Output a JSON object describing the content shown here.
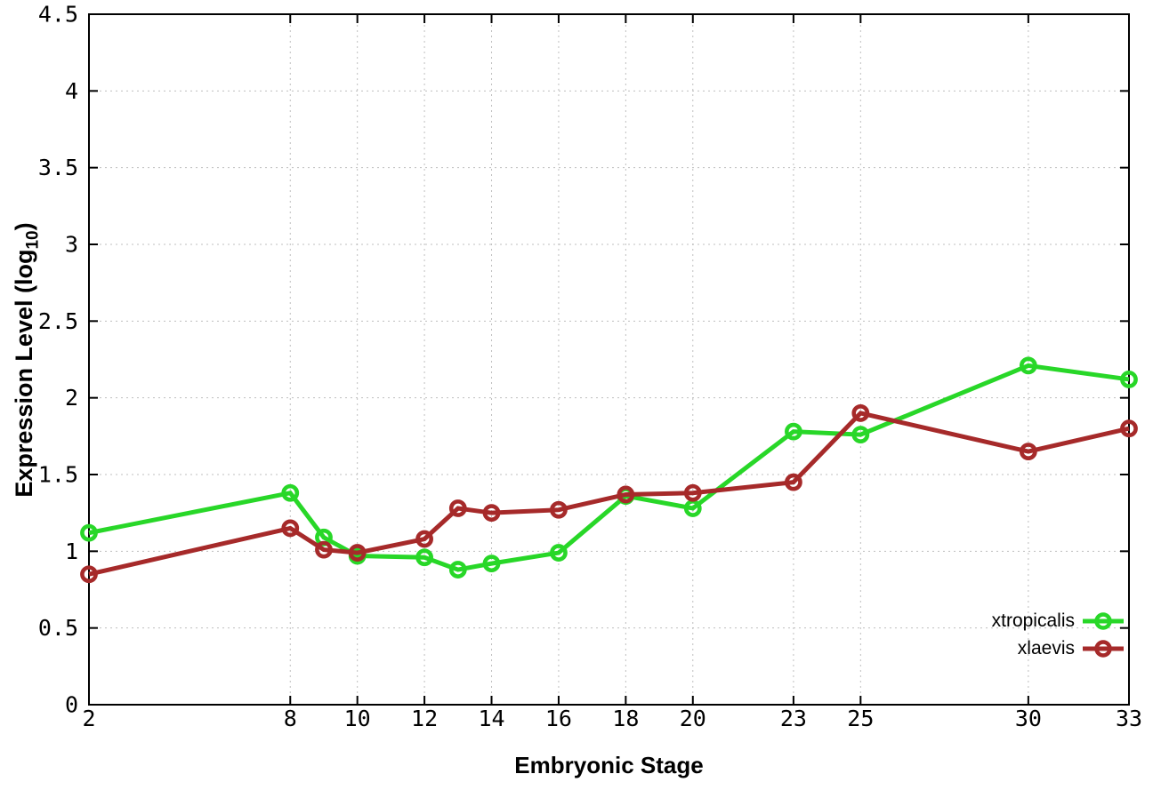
{
  "chart_data": {
    "type": "line",
    "title": "",
    "xlabel": "Embryonic Stage",
    "ylabel": {
      "main": "Expression Level (log",
      "sub": "10",
      "end": ")"
    },
    "x": [
      2,
      8,
      9,
      10,
      12,
      13,
      14,
      16,
      18,
      20,
      23,
      25,
      30,
      33
    ],
    "x_tick_labels": [
      "2",
      "8",
      "10",
      "12",
      "14",
      "16",
      "18",
      "20",
      "23",
      "25",
      "30",
      "33"
    ],
    "x_ticks": [
      2,
      8,
      10,
      12,
      14,
      16,
      18,
      20,
      23,
      25,
      30,
      33
    ],
    "y_tick_labels": [
      "0",
      "0.5",
      "1",
      "1.5",
      "2",
      "2.5",
      "3",
      "3.5",
      "4",
      "4.5"
    ],
    "y_ticks": [
      0,
      0.5,
      1,
      1.5,
      2,
      2.5,
      3,
      3.5,
      4,
      4.5
    ],
    "xlim": [
      2,
      33
    ],
    "ylim": [
      0,
      4.5
    ],
    "grid": true,
    "legend_position": "bottom-right",
    "marker": "open-circle",
    "grid_color": "#bfbfbf",
    "axis_color": "#000000",
    "series": [
      {
        "name": "xtropicalis",
        "color": "#28D728",
        "values": [
          1.12,
          1.38,
          1.09,
          0.97,
          0.96,
          0.88,
          0.92,
          0.99,
          1.36,
          1.28,
          1.78,
          1.76,
          2.21,
          2.12
        ]
      },
      {
        "name": "xlaevis",
        "color": "#A62A2A",
        "values": [
          0.85,
          1.15,
          1.01,
          0.99,
          1.08,
          1.28,
          1.25,
          1.27,
          1.37,
          1.38,
          1.45,
          1.9,
          1.65,
          1.8
        ]
      }
    ]
  }
}
